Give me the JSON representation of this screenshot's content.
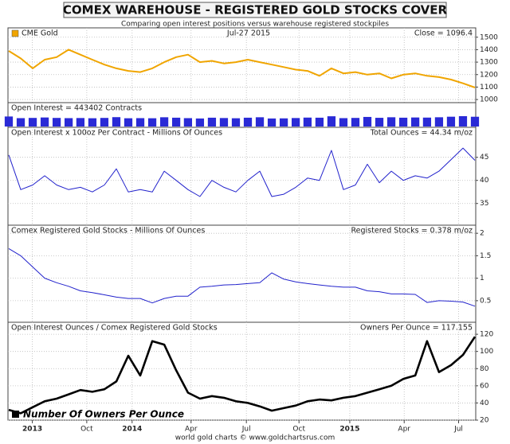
{
  "header": {
    "title": "COMEX WAREHOUSE - REGISTERED GOLD STOCKS COVER",
    "subtitle": "Comparing open interest positions versus warehouse registered stockpiles"
  },
  "footer": "world gold charts © www.goldchartsrus.com",
  "x_axis": {
    "xlim": [
      5.2,
      30.9
    ],
    "xticks": [
      {
        "value": 6.5,
        "label": "2013"
      },
      {
        "value": 9.5,
        "label": "Oct"
      },
      {
        "value": 12,
        "label": "2014"
      },
      {
        "value": 15.25,
        "label": "Apr"
      },
      {
        "value": 18.3,
        "label": "Jul"
      },
      {
        "value": 21.2,
        "label": "Oct"
      },
      {
        "value": 24,
        "label": "2015"
      },
      {
        "value": 27,
        "label": "Apr"
      },
      {
        "value": 30,
        "label": "Jul"
      }
    ],
    "x": [
      5.2,
      5.86,
      6.52,
      7.18,
      7.84,
      8.5,
      9.15,
      9.81,
      10.47,
      11.13,
      11.79,
      12.45,
      13.11,
      13.77,
      14.43,
      15.08,
      15.74,
      16.4,
      17.06,
      17.72,
      18.38,
      19.04,
      19.7,
      20.36,
      21.02,
      21.67,
      22.33,
      22.99,
      23.65,
      24.31,
      24.97,
      25.63,
      26.29,
      26.95,
      27.61,
      28.26,
      28.92,
      29.58,
      30.24,
      30.9
    ]
  },
  "chart_data": [
    {
      "type": "line",
      "date": "Jul-27 2015",
      "annotation": "Close = 1096.4",
      "series": [
        {
          "name": "CME Gold",
          "color": "#f0a500",
          "values": [
            1390,
            1330,
            1250,
            1320,
            1340,
            1400,
            1360,
            1320,
            1280,
            1250,
            1230,
            1220,
            1250,
            1300,
            1340,
            1360,
            1300,
            1310,
            1290,
            1300,
            1320,
            1300,
            1280,
            1260,
            1240,
            1230,
            1190,
            1250,
            1210,
            1220,
            1200,
            1210,
            1170,
            1200,
            1210,
            1190,
            1180,
            1160,
            1130,
            1096.4
          ]
        }
      ],
      "ylim": [
        975,
        1575
      ],
      "yticks": [
        1000,
        1100,
        1200,
        1300,
        1400,
        1500
      ],
      "grid": true
    },
    {
      "type": "bar",
      "title": "Open Interest = 443402 Contracts",
      "series": [
        {
          "color": "#2a2ad6",
          "values": [
            455000,
            380000,
            390000,
            410000,
            390000,
            380000,
            385000,
            375000,
            390000,
            425000,
            375000,
            380000,
            375000,
            420000,
            400000,
            380000,
            365000,
            400000,
            385000,
            375000,
            400000,
            420000,
            365000,
            370000,
            385000,
            405000,
            400000,
            465000,
            380000,
            390000,
            435000,
            395000,
            420000,
            400000,
            410000,
            405000,
            420000,
            445000,
            470000,
            443402
          ]
        }
      ],
      "ylim": [
        0,
        650000
      ]
    },
    {
      "type": "line",
      "title": "Open Interest x 100oz Per Contract - Millions Of Ounces",
      "annotation": "Total Ounces = 44.34 m/oz",
      "series": [
        {
          "color": "#2222cc",
          "values": [
            45.5,
            38,
            39,
            41,
            39,
            38,
            38.5,
            37.5,
            39,
            42.5,
            37.5,
            38,
            37.5,
            42,
            40,
            38,
            36.5,
            40,
            38.5,
            37.5,
            40,
            42,
            36.5,
            37,
            38.5,
            40.5,
            40,
            46.5,
            38,
            39,
            43.5,
            39.5,
            42,
            40,
            41,
            40.5,
            42,
            44.5,
            47,
            44.34
          ]
        }
      ],
      "ylim": [
        30.3,
        51.5
      ],
      "yticks": [
        35,
        40,
        45
      ],
      "grid": true
    },
    {
      "type": "line",
      "title": "Comex Registered Gold Stocks - Millions Of Ounces",
      "annotation": "Registered Stocks = 0.378 m/oz",
      "series": [
        {
          "color": "#2222cc",
          "values": [
            1.66,
            1.5,
            1.25,
            1.0,
            0.9,
            0.82,
            0.72,
            0.68,
            0.63,
            0.58,
            0.55,
            0.55,
            0.45,
            0.55,
            0.6,
            0.6,
            0.8,
            0.82,
            0.85,
            0.86,
            0.88,
            0.9,
            1.12,
            0.98,
            0.92,
            0.88,
            0.85,
            0.82,
            0.8,
            0.8,
            0.72,
            0.7,
            0.65,
            0.65,
            0.64,
            0.46,
            0.5,
            0.49,
            0.47,
            0.378
          ]
        }
      ],
      "ylim": [
        0.02,
        2.18
      ],
      "yticks": [
        0.5,
        1,
        1.5,
        2
      ],
      "grid": true
    },
    {
      "type": "line",
      "title": "Open Interest Ounces / Comex Registered Gold Stocks",
      "annotation": "Owners Per Ounce = 117.155",
      "series": [
        {
          "name": "Number Of Owners Per Ounce",
          "color": "#000000",
          "values": [
            32,
            28,
            35,
            42,
            45,
            50,
            55,
            53,
            56,
            65,
            95,
            72,
            112,
            108,
            78,
            52,
            45,
            48,
            46,
            42,
            40,
            36,
            31,
            34,
            37,
            42,
            44,
            43,
            46,
            48,
            52,
            56,
            60,
            68,
            72,
            112,
            76,
            84,
            96,
            117.155
          ]
        }
      ],
      "ylim": [
        20,
        134
      ],
      "yticks": [
        20,
        40,
        60,
        80,
        100,
        120
      ],
      "grid": true
    }
  ]
}
